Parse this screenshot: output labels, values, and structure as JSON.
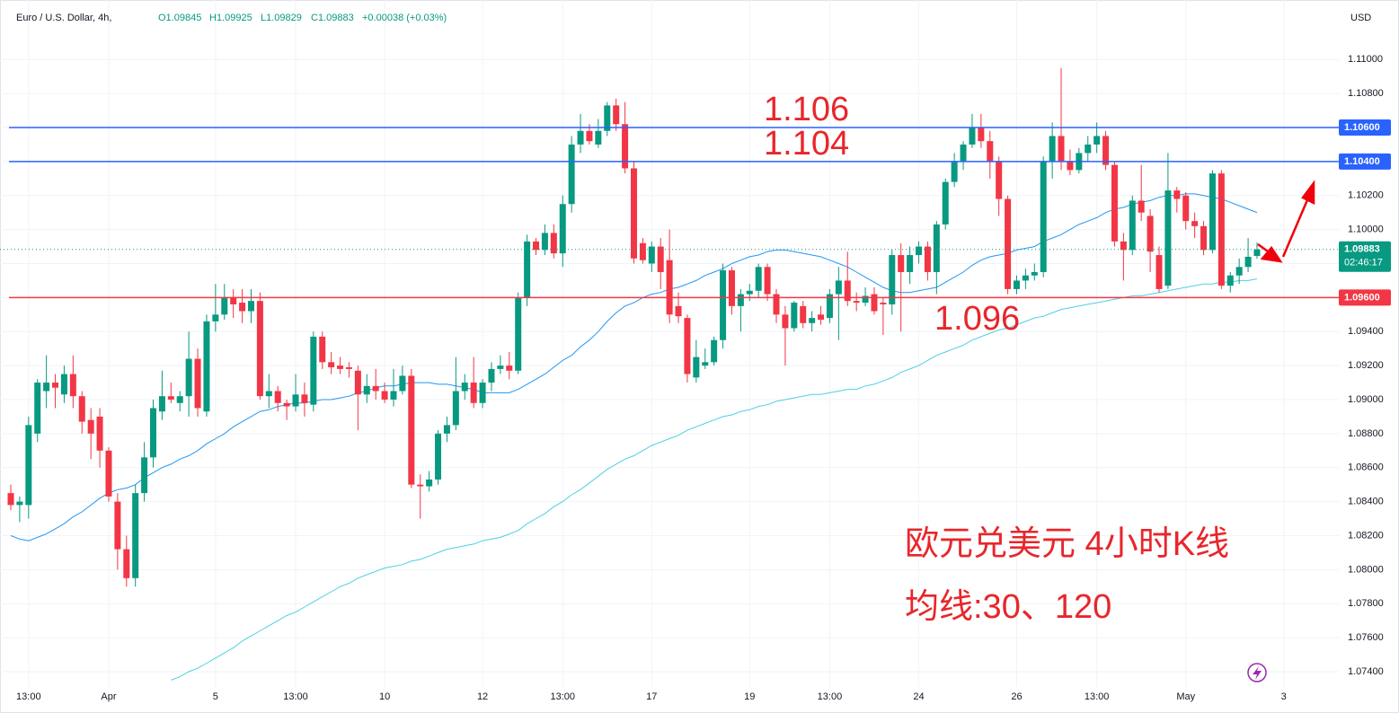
{
  "chart_data": {
    "type": "candlestick",
    "header": {
      "symbol": "Euro / U.S. Dollar, 4h,",
      "ohlc": [
        "O1.09845",
        "H1.09925",
        "L1.09829",
        "C1.09883"
      ],
      "change": "+0.00038 (+0.03%)"
    },
    "currency": "USD",
    "up_color": "#089981",
    "down_color": "#f23645",
    "grid": true,
    "categories": [
      null,
      null,
      "13:00",
      null,
      null,
      null,
      null,
      null,
      null,
      null,
      null,
      "Apr",
      null,
      null,
      null,
      null,
      null,
      null,
      null,
      null,
      null,
      null,
      null,
      "5",
      null,
      null,
      null,
      null,
      null,
      null,
      null,
      null,
      "13:00",
      null,
      null,
      null,
      null,
      null,
      null,
      null,
      null,
      null,
      "10",
      null,
      null,
      null,
      null,
      null,
      null,
      null,
      null,
      null,
      null,
      "12",
      null,
      null,
      null,
      null,
      null,
      null,
      null,
      null,
      "13:00",
      null,
      null,
      null,
      null,
      null,
      null,
      null,
      null,
      null,
      "17",
      null,
      null,
      null,
      null,
      null,
      null,
      null,
      null,
      null,
      null,
      "19",
      null,
      null,
      null,
      null,
      null,
      null,
      null,
      null,
      "13:00",
      null,
      null,
      null,
      null,
      null,
      null,
      null,
      null,
      null,
      "24",
      null,
      null,
      null,
      null,
      null,
      null,
      null,
      null,
      null,
      null,
      "26",
      null,
      null,
      null,
      null,
      null,
      null,
      null,
      null,
      "13:00",
      null,
      null,
      null,
      null,
      null,
      null,
      null,
      null,
      null,
      "May",
      null,
      null,
      null,
      null,
      null,
      null,
      null,
      null,
      null,
      null,
      "3"
    ],
    "open": [
      1.0845,
      1.0838,
      1.0838,
      1.088,
      1.0905,
      1.091,
      1.0903,
      1.0915,
      1.0902,
      1.0888,
      1.089,
      1.087,
      1.084,
      1.0812,
      1.0795,
      1.0845,
      1.0866,
      1.0893,
      1.0902,
      1.0898,
      1.0902,
      1.0924,
      1.0893,
      1.0946,
      1.095,
      1.096,
      1.0957,
      1.0952,
      1.0958,
      1.0902,
      1.0905,
      1.0898,
      1.0896,
      1.0903,
      1.0897,
      1.0937,
      1.0922,
      1.092,
      1.0919,
      1.0917,
      1.0903,
      1.0908,
      1.0905,
      1.09,
      1.0905,
      1.0914,
      1.085,
      1.0849,
      1.0853,
      1.088,
      1.0885,
      1.0905,
      1.091,
      1.0898,
      1.091,
      1.0918,
      1.092,
      1.0917,
      1.096,
      1.0993,
      1.0988,
      1.0998,
      1.0986,
      1.1015,
      1.105,
      1.1058,
      1.105,
      1.1058,
      1.1073,
      1.1062,
      1.1036,
      1.0992,
      1.098,
      1.099,
      1.0982,
      1.0955,
      1.0948,
      1.0913,
      1.092,
      1.0922,
      1.0935,
      1.0976,
      1.0955,
      1.0962,
      1.0964,
      1.0978,
      1.0962,
      1.095,
      1.0942,
      1.0955,
      1.0945,
      1.095,
      1.0948,
      1.0962,
      1.097,
      1.0958,
      1.0957,
      1.0962,
      1.0957,
      1.0956,
      1.0985,
      1.0975,
      1.0985,
      1.099,
      1.0975,
      1.1003,
      1.1028,
      1.104,
      1.105,
      1.106,
      1.1052,
      1.104,
      1.1018,
      1.0965,
      1.097,
      1.0973,
      1.0975,
      1.104,
      1.1055,
      1.104,
      1.1035,
      1.1045,
      1.105,
      1.1055,
      1.1038,
      1.0993,
      1.0988,
      1.1017,
      1.1008,
      1.0985,
      1.0967,
      1.1023,
      1.102,
      1.1005,
      1.1002,
      1.0988,
      1.1033,
      1.0967,
      1.0973,
      1.0978,
      1.09845,
      null,
      null,
      null
    ],
    "high": [
      1.085,
      1.0843,
      1.089,
      1.0912,
      1.0926,
      1.0915,
      1.092,
      1.0926,
      1.0905,
      1.0895,
      1.0895,
      1.0872,
      1.0845,
      1.082,
      1.085,
      1.0875,
      1.09,
      1.0917,
      1.091,
      1.0905,
      1.094,
      1.093,
      1.095,
      1.0968,
      1.0968,
      1.0965,
      1.0965,
      1.0965,
      1.0963,
      1.0915,
      1.0908,
      1.09,
      1.0915,
      1.091,
      1.094,
      1.094,
      1.0928,
      1.0925,
      1.0922,
      1.092,
      1.0915,
      1.0918,
      1.091,
      1.0918,
      1.092,
      1.0918,
      1.0856,
      1.0858,
      1.0882,
      1.089,
      1.0925,
      1.0915,
      1.0925,
      1.0912,
      1.0922,
      1.0926,
      1.0928,
      1.0963,
      1.0997,
      1.0995,
      1.1003,
      1.1003,
      1.102,
      1.1055,
      1.1068,
      1.1062,
      1.1065,
      1.1075,
      1.1077,
      1.1075,
      1.104,
      1.0995,
      1.0993,
      1.0995,
      1.1,
      1.0963,
      1.095,
      1.0935,
      1.093,
      1.0937,
      1.098,
      1.0978,
      1.0965,
      1.0968,
      1.098,
      1.098,
      1.0965,
      1.0955,
      1.0958,
      1.0958,
      1.0952,
      1.0955,
      1.0965,
      1.0978,
      1.0987,
      1.0963,
      1.0966,
      1.0966,
      1.096,
      1.0988,
      1.0992,
      1.099,
      1.0993,
      1.0993,
      1.1005,
      1.103,
      1.1045,
      1.1052,
      1.1068,
      1.1068,
      1.1058,
      1.1043,
      1.102,
      1.0973,
      1.0977,
      1.098,
      1.1043,
      1.1063,
      1.1095,
      1.1047,
      1.1048,
      1.1055,
      1.1063,
      1.1058,
      1.104,
      1.0998,
      1.102,
      1.1038,
      1.1012,
      1.099,
      1.1045,
      1.1025,
      1.1022,
      1.101,
      1.1005,
      1.1035,
      1.1035,
      1.0975,
      1.0983,
      1.0995,
      1.09925,
      null,
      null,
      null
    ],
    "low": [
      1.0835,
      1.0828,
      1.083,
      1.0875,
      1.0895,
      1.0895,
      1.0898,
      1.0895,
      1.088,
      1.0865,
      1.086,
      1.084,
      1.08,
      1.079,
      1.079,
      1.084,
      1.086,
      1.0888,
      1.0898,
      1.0893,
      1.089,
      1.089,
      1.089,
      1.094,
      1.0947,
      1.0948,
      1.0945,
      1.0945,
      1.09,
      1.0895,
      1.0893,
      1.0888,
      1.0893,
      1.089,
      1.0893,
      1.0918,
      1.0915,
      1.0915,
      1.0913,
      1.0882,
      1.0898,
      1.09,
      1.0898,
      1.0896,
      1.0903,
      1.0848,
      1.083,
      1.0846,
      1.085,
      1.0875,
      1.0882,
      1.09,
      1.0895,
      1.0895,
      1.0905,
      1.0915,
      1.0912,
      1.0915,
      1.0955,
      1.0985,
      1.0985,
      1.0983,
      1.0978,
      1.101,
      1.1045,
      1.105,
      1.1048,
      1.1055,
      1.1058,
      1.1033,
      1.098,
      1.098,
      1.0975,
      1.0965,
      1.0945,
      1.0945,
      1.091,
      1.091,
      1.0918,
      1.092,
      1.093,
      1.095,
      1.094,
      1.0958,
      1.096,
      1.0958,
      1.0945,
      1.092,
      1.094,
      1.0942,
      1.094,
      1.0944,
      1.0945,
      1.0935,
      1.0955,
      1.0952,
      1.0955,
      1.095,
      1.0938,
      1.095,
      1.094,
      1.0968,
      1.098,
      1.097,
      1.0962,
      1.1,
      1.1025,
      1.1035,
      1.1048,
      1.1048,
      1.103,
      1.1008,
      1.0962,
      1.0962,
      1.0965,
      1.097,
      1.0972,
      1.103,
      1.1035,
      1.1032,
      1.1033,
      1.104,
      1.1045,
      1.1035,
      1.099,
      1.097,
      1.0985,
      1.1005,
      1.0975,
      1.0963,
      1.0965,
      1.101,
      1.1,
      1.0995,
      1.0985,
      1.0986,
      1.0965,
      1.0963,
      1.0968,
      1.0975,
      1.09829,
      null,
      null,
      null
    ],
    "close": [
      1.0838,
      1.084,
      1.0885,
      1.091,
      1.091,
      1.0907,
      1.0915,
      1.0902,
      1.0887,
      1.088,
      1.087,
      1.0843,
      1.0812,
      1.0795,
      1.0845,
      1.0866,
      1.0895,
      1.0902,
      1.09,
      1.0902,
      1.0924,
      1.0895,
      1.0946,
      1.095,
      1.096,
      1.0956,
      1.0952,
      1.0958,
      1.0902,
      1.0905,
      1.0898,
      1.0896,
      1.0903,
      1.0898,
      1.0937,
      1.0922,
      1.0919,
      1.0918,
      1.0918,
      1.0903,
      1.0908,
      1.0905,
      1.09,
      1.0905,
      1.0914,
      1.085,
      1.0849,
      1.0853,
      1.088,
      1.0885,
      1.0905,
      1.091,
      1.0898,
      1.091,
      1.0918,
      1.092,
      1.0917,
      1.096,
      1.0993,
      1.0988,
      1.0998,
      1.0986,
      1.1015,
      1.105,
      1.1058,
      1.1052,
      1.1058,
      1.1073,
      1.1062,
      1.1036,
      1.0983,
      1.0982,
      1.099,
      1.0975,
      1.095,
      1.0949,
      1.0915,
      1.0925,
      1.0922,
      1.0935,
      1.0976,
      1.0955,
      1.0962,
      1.0964,
      1.0978,
      1.0962,
      1.095,
      1.0942,
      1.0957,
      1.0945,
      1.0948,
      1.0947,
      1.0962,
      1.097,
      1.0958,
      1.0957,
      1.0961,
      1.0952,
      1.0956,
      1.0985,
      1.0975,
      1.0985,
      1.099,
      1.0975,
      1.1003,
      1.1028,
      1.104,
      1.105,
      1.106,
      1.1052,
      1.104,
      1.1018,
      1.0965,
      1.097,
      1.0973,
      1.0975,
      1.104,
      1.1055,
      1.104,
      1.1035,
      1.1045,
      1.105,
      1.1055,
      1.1038,
      1.0993,
      1.0988,
      1.1017,
      1.101,
      1.0987,
      1.0965,
      1.1023,
      1.1018,
      1.1005,
      1.1002,
      1.0988,
      1.1033,
      1.0967,
      1.0973,
      1.0978,
      1.0984,
      1.09883,
      null,
      null,
      null
    ],
    "series": [
      {
        "color": "#2196f3",
        "values": [
          1.082,
          1.0818,
          1.0817,
          1.0819,
          1.0821,
          1.0824,
          1.0827,
          1.0831,
          1.0834,
          1.0838,
          1.0842,
          1.0845,
          1.0847,
          1.0848,
          1.085,
          1.0854,
          1.0857,
          1.086,
          1.0862,
          1.0865,
          1.0867,
          1.087,
          1.0874,
          1.0877,
          1.088,
          1.0884,
          1.0887,
          1.089,
          1.0893,
          1.0894,
          1.0896,
          1.0897,
          1.0898,
          1.0898,
          1.0899,
          1.09,
          1.09,
          1.0901,
          1.0902,
          1.0904,
          1.0905,
          1.0907,
          1.0908,
          1.0908,
          1.0909,
          1.091,
          1.091,
          1.091,
          1.0909,
          1.0909,
          1.0908,
          1.0907,
          1.0906,
          1.0904,
          1.0904,
          1.0904,
          1.0904,
          1.0906,
          1.0909,
          1.0912,
          1.0915,
          1.0919,
          1.0923,
          1.0926,
          1.0931,
          1.0935,
          1.094,
          1.0946,
          1.0951,
          1.0955,
          1.0957,
          1.096,
          1.0962,
          1.0963,
          1.0965,
          1.0966,
          1.0968,
          1.097,
          1.0973,
          1.0975,
          1.0977,
          1.098,
          1.0982,
          1.0984,
          1.0985,
          1.0987,
          1.0988,
          1.0988,
          1.0987,
          1.0986,
          1.0985,
          1.0984,
          1.0982,
          1.098,
          1.0978,
          1.0975,
          1.0972,
          1.0969,
          1.0966,
          1.0964,
          1.0963,
          1.0963,
          1.0964,
          1.0965,
          1.0966,
          1.0969,
          1.0972,
          1.0975,
          1.0979,
          1.0982,
          1.0984,
          1.0985,
          1.0986,
          1.0988,
          1.0989,
          1.099,
          1.0993,
          1.0995,
          1.0997,
          1.1,
          1.1003,
          1.1005,
          1.1007,
          1.101,
          1.1012,
          1.1013,
          1.1015,
          1.1016,
          1.1017,
          1.1019,
          1.102,
          1.102,
          1.1021,
          1.1021,
          1.102,
          1.1019,
          1.1018,
          1.1016,
          1.1014,
          1.1012,
          1.101,
          null,
          null,
          null
        ]
      },
      {
        "color": "#4dd0e1",
        "values": [
          null,
          null,
          null,
          null,
          null,
          null,
          null,
          null,
          null,
          null,
          null,
          null,
          null,
          null,
          null,
          null,
          null,
          null,
          1.0735,
          1.0737,
          1.074,
          1.0742,
          1.0745,
          1.0748,
          1.0751,
          1.0754,
          1.0758,
          1.0761,
          1.0764,
          1.0767,
          1.077,
          1.0773,
          1.0775,
          1.0778,
          1.0781,
          1.0784,
          1.0787,
          1.079,
          1.0792,
          1.0795,
          1.0797,
          1.0799,
          1.0801,
          1.0802,
          1.0803,
          1.0805,
          1.0806,
          1.0808,
          1.081,
          1.0812,
          1.0813,
          1.0814,
          1.0815,
          1.0817,
          1.0818,
          1.0819,
          1.0821,
          1.0823,
          1.0827,
          1.083,
          1.0833,
          1.0837,
          1.084,
          1.0844,
          1.0847,
          1.0851,
          1.0855,
          1.0859,
          1.0862,
          1.0865,
          1.0867,
          1.087,
          1.0873,
          1.0875,
          1.0877,
          1.0879,
          1.0882,
          1.0884,
          1.0886,
          1.0888,
          1.089,
          1.0891,
          1.0893,
          1.0894,
          1.0896,
          1.0897,
          1.0899,
          1.09,
          1.0901,
          1.0902,
          1.0903,
          1.0903,
          1.0904,
          1.0905,
          1.0906,
          1.0906,
          1.0908,
          1.0909,
          1.0911,
          1.0913,
          1.0916,
          1.0918,
          1.092,
          1.0923,
          1.0926,
          1.0928,
          1.093,
          1.0932,
          1.0935,
          1.0937,
          1.0939,
          1.0941,
          1.0942,
          1.0944,
          1.0946,
          1.0948,
          1.0949,
          1.0951,
          1.0953,
          1.0954,
          1.0955,
          1.0956,
          1.0957,
          1.0958,
          1.0959,
          1.096,
          1.0961,
          1.0961,
          1.0962,
          1.0963,
          1.0964,
          1.0965,
          1.0966,
          1.0967,
          1.0968,
          1.0968,
          1.0969,
          1.0969,
          1.097,
          1.097,
          1.0971,
          null,
          null,
          null
        ]
      }
    ],
    "ylim": [
      1.0731,
      1.1135
    ],
    "yticks": [
      {
        "value": 1.074,
        "label": "1.07400"
      },
      {
        "value": 1.076,
        "label": "1.07600"
      },
      {
        "value": 1.078,
        "label": "1.07800"
      },
      {
        "value": 1.08,
        "label": "1.08000"
      },
      {
        "value": 1.082,
        "label": "1.08200"
      },
      {
        "value": 1.084,
        "label": "1.08400"
      },
      {
        "value": 1.086,
        "label": "1.08600"
      },
      {
        "value": 1.088,
        "label": "1.08800"
      },
      {
        "value": 1.09,
        "label": "1.09000"
      },
      {
        "value": 1.092,
        "label": "1.09200"
      },
      {
        "value": 1.094,
        "label": "1.09400"
      },
      {
        "value": 1.096,
        "label": "1.09600"
      },
      {
        "value": 1.098,
        "label": "1.09800"
      },
      {
        "value": 1.1,
        "label": "1.10000"
      },
      {
        "value": 1.102,
        "label": "1.10200"
      },
      {
        "value": 1.104,
        "label": "1.10400"
      },
      {
        "value": 1.106,
        "label": "1.10600"
      },
      {
        "value": 1.108,
        "label": "1.10800"
      },
      {
        "value": 1.11,
        "label": "1.11000"
      }
    ],
    "hlines": [
      {
        "value": 1.106,
        "label": "1.10600",
        "color": "#2962ff",
        "annotation": "1.106"
      },
      {
        "value": 1.104,
        "label": "1.10400",
        "color": "#2962ff",
        "annotation": "1.104"
      },
      {
        "value": 1.096,
        "label": "1.09600",
        "color": "#f23645",
        "annotation": "1.096"
      }
    ],
    "last_price": {
      "value": 1.09883,
      "countdown": "02:46:17",
      "color": "#089981"
    },
    "annotations": [
      "欧元兑美元 4小时K线",
      "均线:30、120"
    ]
  }
}
